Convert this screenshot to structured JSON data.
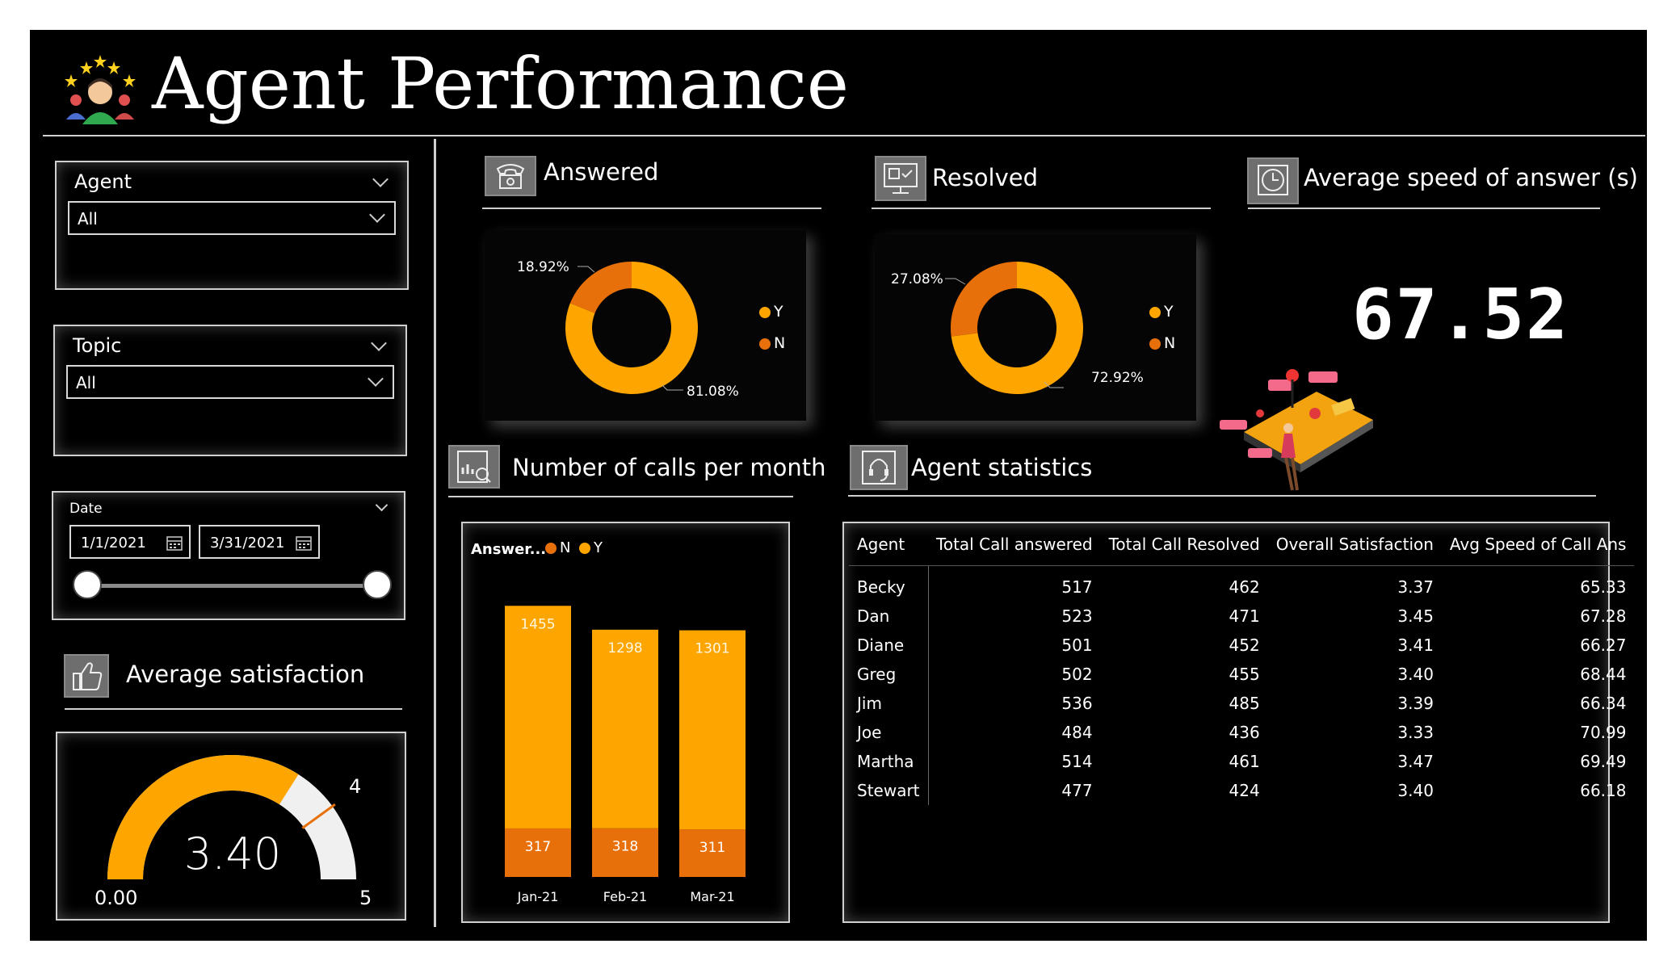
{
  "header": {
    "title": "Agent Performance"
  },
  "filters": {
    "agent": {
      "label": "Agent",
      "value": "All"
    },
    "topic": {
      "label": "Topic",
      "value": "All"
    },
    "date": {
      "label": "Date",
      "start": "1/1/2021",
      "end": "3/31/2021"
    }
  },
  "sections": {
    "answered": "Answered",
    "resolved": "Resolved",
    "speed": "Average speed of answer (s)",
    "calls": "Number of calls per month",
    "stats": "Agent statistics",
    "satisfaction": "Average satisfaction"
  },
  "colors": {
    "y": "#FFA500",
    "n": "#E8700A",
    "gauge_rest": "#f0f0f0",
    "target": "#E8700A"
  },
  "kpi": {
    "avg_speed": "67.52"
  },
  "gauge": {
    "value": 3.4,
    "value_label": "3.40",
    "min_label": "0.00",
    "max_label": "5",
    "target_label": "4",
    "min": 0,
    "max": 5,
    "target": 4
  },
  "chart_data": [
    {
      "type": "pie",
      "name": "Answered",
      "labels": [
        "Y",
        "N"
      ],
      "values": [
        81.08,
        18.92
      ],
      "value_labels": [
        "81.08%",
        "18.92%"
      ],
      "legend": "right"
    },
    {
      "type": "pie",
      "name": "Resolved",
      "labels": [
        "Y",
        "N"
      ],
      "values": [
        72.92,
        27.08
      ],
      "value_labels": [
        "72.92%",
        "27.08%"
      ],
      "legend": "right"
    },
    {
      "type": "bar",
      "stacked": true,
      "legend_title": "Answer...",
      "categories": [
        "Jan-21",
        "Feb-21",
        "Mar-21"
      ],
      "series": [
        {
          "name": "N",
          "values": [
            317,
            318,
            311
          ]
        },
        {
          "name": "Y",
          "values": [
            1455,
            1298,
            1301
          ]
        }
      ],
      "legend": "top-left"
    }
  ],
  "table": {
    "columns": [
      "Agent",
      "Total Call answered",
      "Total Call Resolved",
      "Overall Satisfaction",
      "Avg Speed of Call Ans"
    ],
    "rows": [
      [
        "Becky",
        "517",
        "462",
        "3.37",
        "65.33"
      ],
      [
        "Dan",
        "523",
        "471",
        "3.45",
        "67.28"
      ],
      [
        "Diane",
        "501",
        "452",
        "3.41",
        "66.27"
      ],
      [
        "Greg",
        "502",
        "455",
        "3.40",
        "68.44"
      ],
      [
        "Jim",
        "536",
        "485",
        "3.39",
        "66.34"
      ],
      [
        "Joe",
        "484",
        "436",
        "3.33",
        "70.99"
      ],
      [
        "Martha",
        "514",
        "461",
        "3.47",
        "69.49"
      ],
      [
        "Stewart",
        "477",
        "424",
        "3.40",
        "66.18"
      ]
    ]
  }
}
